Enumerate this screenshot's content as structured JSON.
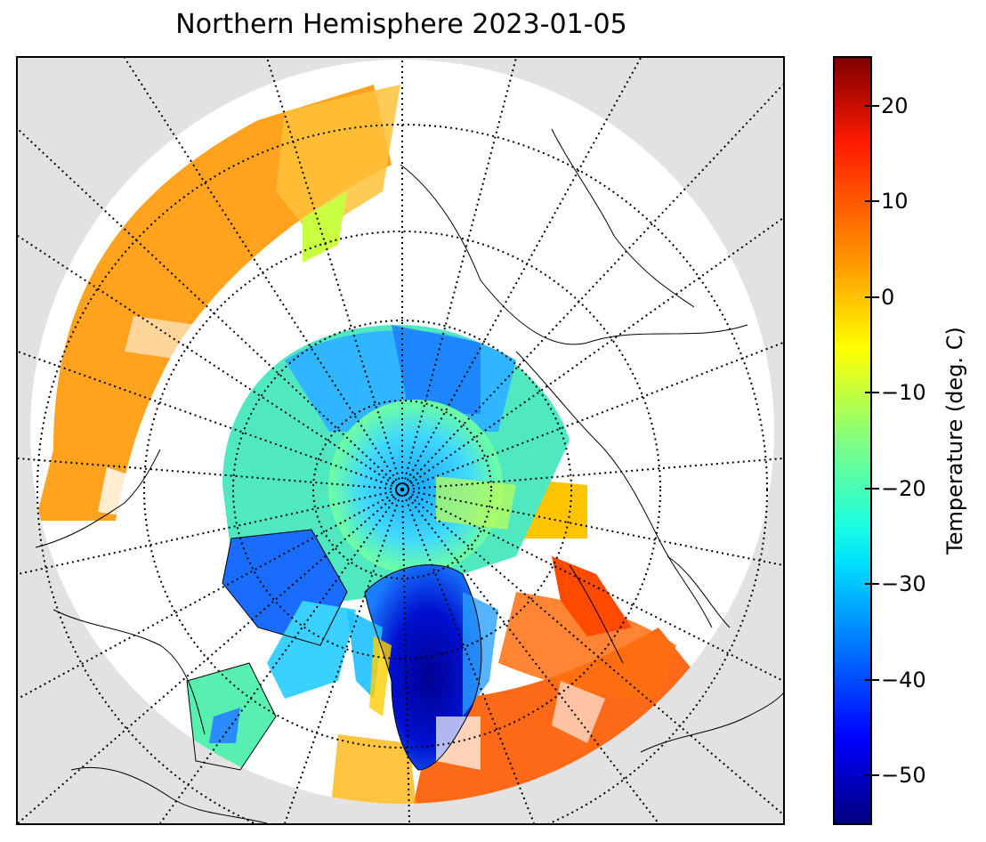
{
  "title": "Northern Hemisphere 2023-01-05",
  "map": {
    "projection": "north-polar-stereographic",
    "background_color": "#e2e2e2",
    "graticule": "dotted",
    "variable": "surface temperature"
  },
  "colorbar": {
    "label": "Temperature (deg. C)",
    "min": -55,
    "max": 25,
    "colormap": "jet",
    "ticks": [
      "20",
      "10",
      "0",
      "−10",
      "−20",
      "−30",
      "−40",
      "−50"
    ],
    "tick_values": [
      20,
      10,
      0,
      -10,
      -20,
      -30,
      -40,
      -50
    ]
  }
}
